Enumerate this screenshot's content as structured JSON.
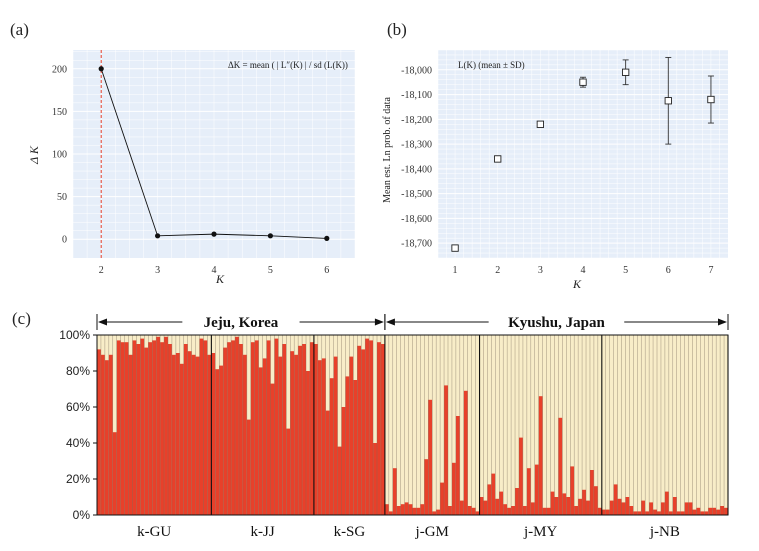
{
  "panels": {
    "a": {
      "label": "(a)",
      "annotation": "ΔK = mean ( | L″(K) | / sd (L(K))",
      "chart_data": {
        "type": "line",
        "x": [
          2,
          3,
          4,
          5,
          6
        ],
        "y": [
          200,
          4,
          6,
          4,
          1
        ],
        "xlabel": "K",
        "ylabel": "Δ K",
        "xlim": [
          1.5,
          6.5
        ],
        "ylim": [
          -22,
          222
        ],
        "xticks": [
          "2",
          "3",
          "4",
          "5",
          "6"
        ],
        "yticks": [
          "0",
          "50",
          "100",
          "150",
          "200"
        ],
        "grid": true,
        "highlight_x": 2
      }
    },
    "b": {
      "label": "(b)",
      "annotation": "L(K) (mean ± SD)",
      "chart_data": {
        "type": "scatter",
        "x": [
          1,
          2,
          3,
          4,
          5,
          6,
          7
        ],
        "y": [
          -18720,
          -18360,
          -18220,
          -18050,
          -18010,
          -18125,
          -18120
        ],
        "sd": [
          3,
          3,
          3,
          20,
          50,
          175,
          95
        ],
        "xlabel": "K",
        "ylabel": "Mean est. Ln prob. of data",
        "xlim": [
          0.6,
          7.4
        ],
        "ylim": [
          -18760,
          -17920
        ],
        "xticks": [
          "1",
          "2",
          "3",
          "4",
          "5",
          "6",
          "7"
        ],
        "yticks": [
          "-18,000",
          "-18,100",
          "-18,200",
          "-18,300",
          "-18,400",
          "-18,500",
          "-18,600",
          "-18,700"
        ],
        "grid": true
      }
    },
    "c": {
      "label": "(c)",
      "chart_data": {
        "type": "bar",
        "stacked": true,
        "ylim": [
          0,
          100
        ],
        "yticks": [
          "0%",
          "20%",
          "40%",
          "60%",
          "80%",
          "100%"
        ],
        "regions": [
          {
            "name": "Jeju, Korea",
            "populations": [
              "k-GU",
              "k-JJ",
              "k-SG"
            ]
          },
          {
            "name": "Kyushu, Japan",
            "populations": [
              "j-GM",
              "j-MY",
              "j-NB"
            ]
          }
        ],
        "series_colors": {
          "cluster1": "#e8402a",
          "cluster2": "#f8edc8"
        },
        "populations": [
          {
            "name": "k-GU",
            "cluster1": [
              92,
              89,
              86,
              89,
              46,
              97,
              96,
              96,
              89,
              97,
              95,
              98,
              93,
              96,
              97,
              99,
              96,
              99,
              95,
              89,
              90,
              84,
              95,
              91,
              89,
              88,
              98,
              97,
              89
            ]
          },
          {
            "name": "k-JJ",
            "cluster1": [
              90,
              81,
              83,
              93,
              96,
              97,
              99,
              95,
              89,
              53,
              96,
              97,
              82,
              87,
              97,
              73,
              98,
              88,
              95,
              48,
              91,
              89,
              94,
              95,
              80,
              96
            ]
          },
          {
            "name": "k-SG",
            "cluster1": [
              95,
              86,
              87,
              58,
              76,
              88,
              38,
              60,
              77,
              88,
              75,
              94,
              92,
              98,
              97,
              40,
              96,
              95
            ]
          },
          {
            "name": "j-GM",
            "cluster1": [
              6,
              2,
              26,
              5,
              6,
              7,
              6,
              4,
              4,
              6,
              31,
              64,
              2,
              3,
              18,
              72,
              5,
              29,
              55,
              8,
              69,
              5,
              4,
              2
            ]
          },
          {
            "name": "j-MY",
            "cluster1": [
              10,
              8,
              17,
              23,
              9,
              13,
              6,
              4,
              5,
              15,
              43,
              5,
              26,
              7,
              28,
              66,
              4,
              4,
              13,
              10,
              54,
              12,
              10,
              27,
              5,
              9,
              14,
              8,
              25,
              16,
              4
            ]
          },
          {
            "name": "j-NB",
            "cluster1": [
              3,
              3,
              8,
              17,
              9,
              7,
              10,
              5,
              2,
              2,
              8,
              2,
              7,
              3,
              2,
              7,
              13,
              2,
              10,
              2,
              2,
              7,
              7,
              3,
              4,
              2,
              2,
              4,
              4,
              3,
              5,
              4
            ]
          }
        ]
      }
    }
  }
}
